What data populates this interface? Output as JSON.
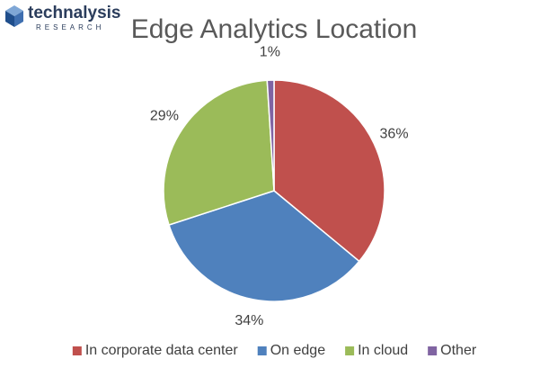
{
  "logo": {
    "name": "technalysis",
    "tagline": "RESEARCH"
  },
  "chart_data": {
    "type": "pie",
    "title": "Edge Analytics Location",
    "categories": [
      "In corporate data center",
      "On edge",
      "In cloud",
      "Other"
    ],
    "values": [
      36,
      34,
      29,
      1
    ],
    "value_labels": [
      "36%",
      "34%",
      "29%",
      "1%"
    ],
    "colors": [
      "#c0504d",
      "#4f81bd",
      "#9bbb59",
      "#8064a2"
    ],
    "legend": "bottom"
  }
}
